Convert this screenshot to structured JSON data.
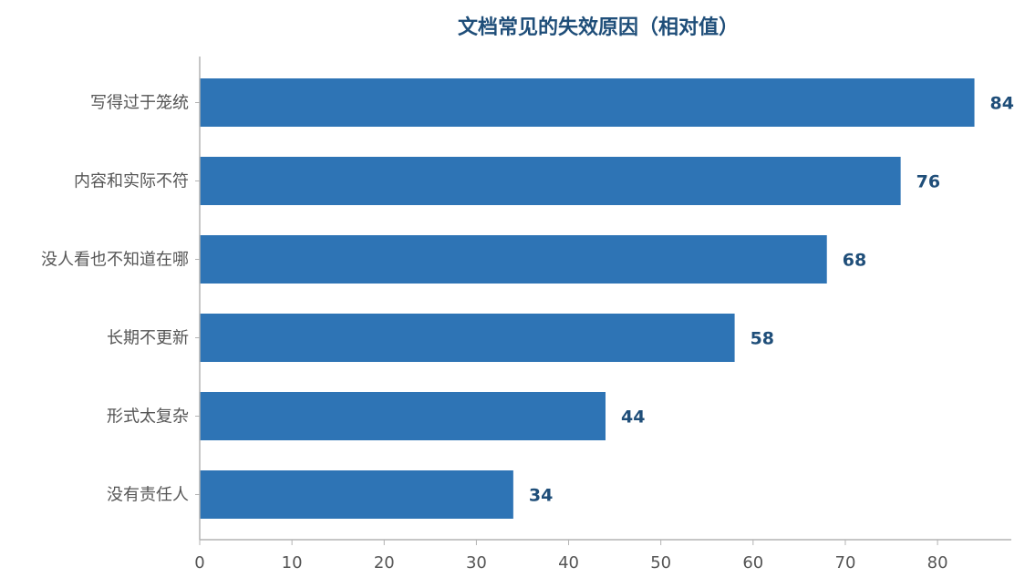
{
  "chart_data": {
    "type": "bar",
    "orientation": "horizontal",
    "title": "文档常见的失效原因（相对值）",
    "categories": [
      "写得过于笼统",
      "内容和实际不符",
      "没人看也不知道在哪",
      "长期不更新",
      "形式太复杂",
      "没有责任人"
    ],
    "values": [
      84,
      76,
      68,
      58,
      44,
      34
    ],
    "xlim": [
      0,
      88
    ],
    "xticks": [
      0,
      10,
      20,
      30,
      40,
      50,
      60,
      70,
      80
    ],
    "xlabel": "",
    "ylabel": "",
    "grid": false,
    "legend": false,
    "data_labels": true
  },
  "colors": {
    "bar": "#2e74b5",
    "title": "#1f4e79",
    "value_label": "#1f4e79",
    "axis": "#b3b3b3",
    "tick_text": "#555555"
  }
}
